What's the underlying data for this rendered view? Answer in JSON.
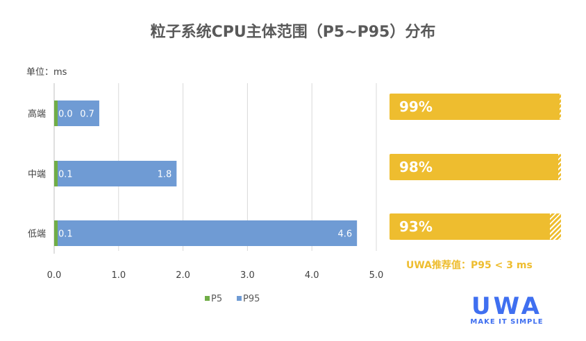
{
  "chart_data": {
    "type": "bar",
    "orientation": "horizontal",
    "stacked": true,
    "title": "粒子系统CPU主体范围（P5~P95）分布",
    "unit_label": "单位：ms",
    "categories": [
      "高端",
      "中端",
      "低端"
    ],
    "series": [
      {
        "name": "P5",
        "color": "#70ad47",
        "values": [
          0.0,
          0.1,
          0.1
        ],
        "labels": [
          "0.0",
          "0.1",
          "0.1"
        ]
      },
      {
        "name": "P95",
        "color": "#6f9bd4",
        "values": [
          0.7,
          1.8,
          4.6
        ],
        "labels": [
          "0.7",
          "1.8",
          "4.6"
        ]
      }
    ],
    "xlim": [
      0,
      5
    ],
    "xticks": [
      "0.0",
      "1.0",
      "2.0",
      "3.0",
      "4.0",
      "5.0"
    ],
    "grid": true,
    "legend": "bottom"
  },
  "compliance": {
    "items": [
      {
        "label": "99%",
        "value": 99
      },
      {
        "label": "98%",
        "value": 98
      },
      {
        "label": "93%",
        "value": 93
      }
    ],
    "color": "#eebd2f",
    "recommendation": "UWA推荐值：P95 < 3 ms"
  },
  "logo": {
    "word": "UWA",
    "tagline": "MAKE IT SIMPLE"
  }
}
